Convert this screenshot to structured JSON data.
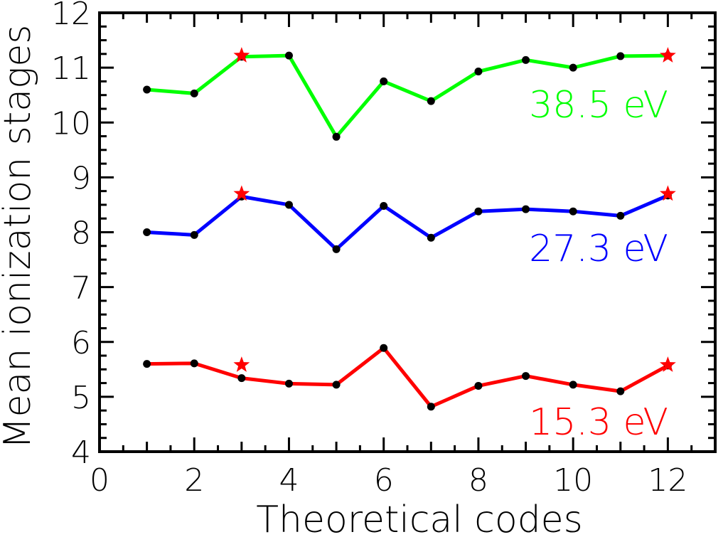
{
  "chart_data": {
    "type": "line",
    "title": "",
    "xlabel": "Theoretical codes",
    "ylabel": "Mean ionization stages",
    "xlim": [
      0,
      13
    ],
    "ylim": [
      4,
      12
    ],
    "x_ticks": [
      "0",
      "2",
      "4",
      "6",
      "8",
      "10",
      "12"
    ],
    "y_ticks": [
      "4",
      "5",
      "6",
      "7",
      "8",
      "9",
      "10",
      "11",
      "12"
    ],
    "x": [
      1,
      2,
      3,
      4,
      5,
      6,
      7,
      8,
      9,
      10,
      11,
      12
    ],
    "grid": false,
    "series": [
      {
        "name": "38.5 eV",
        "color": "#00ff00",
        "values": [
          10.6,
          10.53,
          11.2,
          11.22,
          9.74,
          10.75,
          10.39,
          10.93,
          11.14,
          11.0,
          11.21,
          11.22
        ]
      },
      {
        "name": "27.3 eV",
        "color": "#0000ff",
        "values": [
          8.0,
          7.95,
          8.65,
          8.5,
          7.69,
          8.48,
          7.9,
          8.38,
          8.42,
          8.38,
          8.3,
          8.67
        ]
      },
      {
        "name": "15.3 eV",
        "color": "#ff0000",
        "values": [
          5.6,
          5.61,
          5.34,
          5.24,
          5.22,
          5.89,
          4.82,
          5.2,
          5.38,
          5.22,
          5.1,
          5.57
        ]
      }
    ],
    "star_markers": {
      "color": "#ff0000",
      "points": [
        {
          "x": 3,
          "y": 11.22
        },
        {
          "x": 12,
          "y": 11.22
        },
        {
          "x": 3,
          "y": 8.7
        },
        {
          "x": 12,
          "y": 8.7
        },
        {
          "x": 3,
          "y": 5.58
        },
        {
          "x": 12,
          "y": 5.58
        }
      ]
    }
  }
}
